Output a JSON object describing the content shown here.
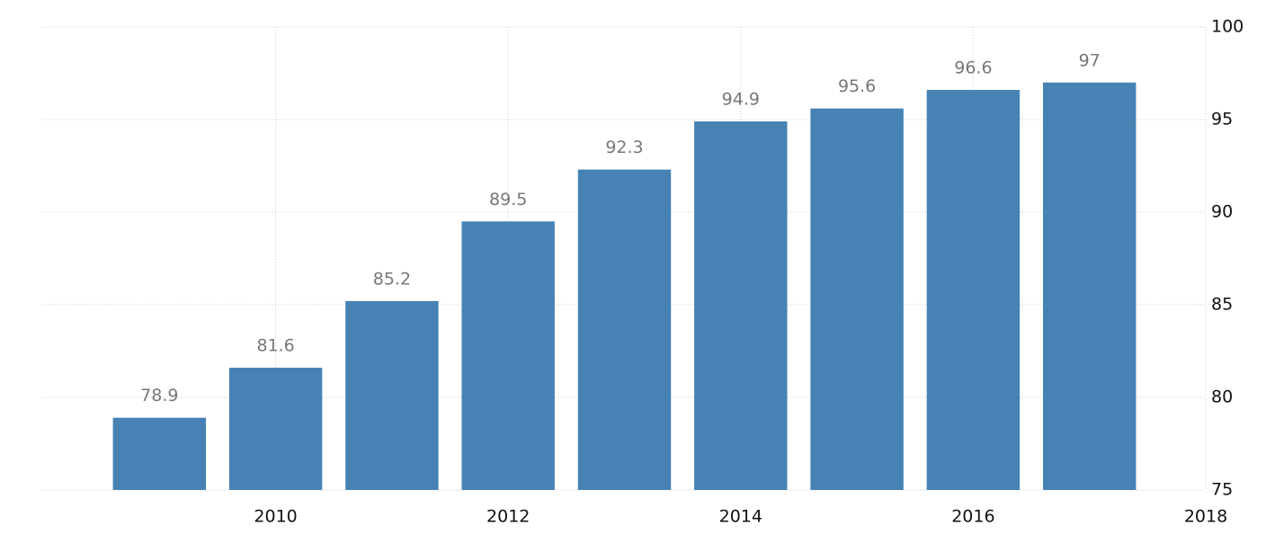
{
  "chart_data": {
    "type": "bar",
    "x": [
      2009,
      2010,
      2011,
      2012,
      2013,
      2014,
      2015,
      2016,
      2017
    ],
    "values": [
      78.9,
      81.6,
      85.2,
      89.5,
      92.3,
      94.9,
      95.6,
      96.6,
      97
    ],
    "color": "#4682b4",
    "xlim": [
      2008,
      2018
    ],
    "xticks": [
      2010,
      2012,
      2014,
      2016,
      2018
    ],
    "ylim": [
      75,
      100
    ],
    "yticks": [
      75,
      80,
      85,
      90,
      95,
      100
    ],
    "grid": true
  }
}
